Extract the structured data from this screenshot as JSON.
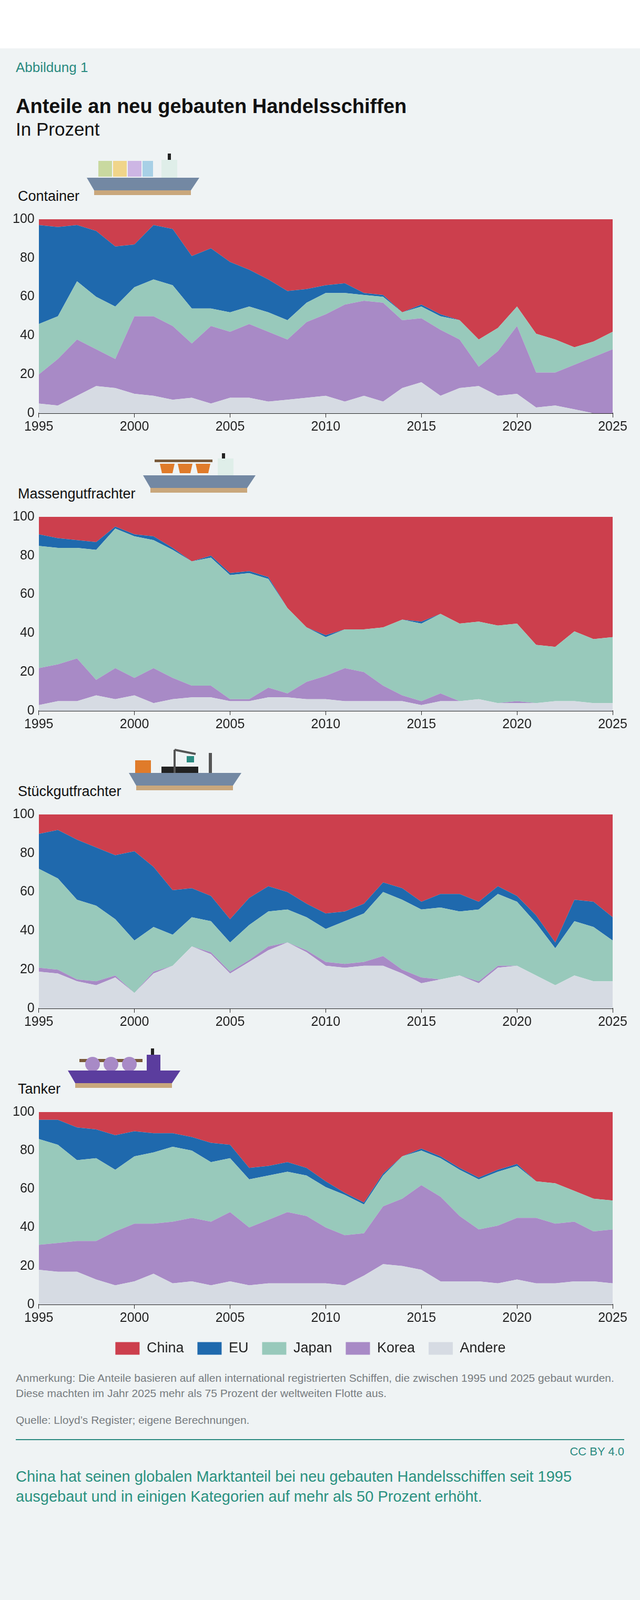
{
  "figure": {
    "label": "Abbildung 1",
    "title": "Anteile an neu gebauten Handelsschiffen",
    "subtitle": "In Prozent",
    "note": "Anmerkung: Die Anteile basieren auf allen international registrierten Schiffen, die zwischen 1995 und 2025 gebaut wurden. Diese machten im Jahr 2025 mehr als 75 Prozent der weltweiten Flotte aus.",
    "source": "Quelle: Lloyd’s Register; eigene Berechnungen.",
    "license": "CC BY 4.0",
    "caption": "China hat seinen globalen Marktanteil bei neu gebauten Handelsschiffen seit 1995 ausgebaut und in einigen Kategorien auf mehr als 50 Prozent erhöht."
  },
  "chart_data": [
    {
      "type": "area",
      "title": "Container",
      "stacked": true,
      "grid": false,
      "x": [
        1995,
        1996,
        1997,
        1998,
        1999,
        2000,
        2001,
        2002,
        2003,
        2004,
        2005,
        2006,
        2007,
        2008,
        2009,
        2010,
        2011,
        2012,
        2013,
        2014,
        2015,
        2016,
        2017,
        2018,
        2019,
        2020,
        2021,
        2022,
        2023,
        2024,
        2025
      ],
      "xlim": [
        1995,
        2025
      ],
      "xticks": [
        1995,
        2000,
        2005,
        2010,
        2015,
        2020,
        2025
      ],
      "ylim": [
        0,
        100
      ],
      "yticks": [
        0,
        20,
        40,
        60,
        80,
        100
      ],
      "series": [
        {
          "name": "China",
          "color": "#cc3f4d",
          "values": [
            3,
            4,
            3,
            6,
            14,
            13,
            3,
            5,
            19,
            15,
            22,
            26,
            31,
            37,
            36,
            34,
            33,
            38,
            39,
            48,
            44,
            49,
            52,
            62,
            56,
            45,
            59,
            62,
            66,
            63,
            58
          ]
        },
        {
          "name": "EU",
          "color": "#1f69ad",
          "values": [
            51,
            46,
            29,
            34,
            31,
            22,
            28,
            29,
            27,
            31,
            26,
            19,
            17,
            15,
            7,
            4,
            5,
            1,
            1,
            0,
            1,
            1,
            0,
            0,
            0,
            0,
            0,
            0,
            0,
            0,
            0
          ]
        },
        {
          "name": "Japan",
          "color": "#98c9bb",
          "values": [
            26,
            22,
            30,
            27,
            27,
            15,
            19,
            21,
            18,
            9,
            10,
            9,
            10,
            10,
            10,
            11,
            6,
            3,
            3,
            4,
            6,
            7,
            10,
            14,
            12,
            10,
            20,
            17,
            9,
            8,
            9
          ]
        },
        {
          "name": "Korea",
          "color": "#a88ac6",
          "values": [
            15,
            24,
            29,
            19,
            15,
            40,
            41,
            38,
            28,
            40,
            34,
            38,
            36,
            31,
            39,
            42,
            50,
            49,
            51,
            35,
            33,
            34,
            25,
            10,
            23,
            35,
            18,
            17,
            23,
            29,
            33
          ]
        },
        {
          "name": "Andere",
          "color": "#d6dbe3",
          "values": [
            5,
            4,
            9,
            14,
            13,
            10,
            9,
            7,
            8,
            5,
            8,
            8,
            6,
            7,
            8,
            9,
            6,
            9,
            6,
            13,
            16,
            9,
            13,
            14,
            9,
            10,
            3,
            4,
            2,
            0,
            0
          ]
        }
      ]
    },
    {
      "type": "area",
      "title": "Massengutfrachter",
      "stacked": true,
      "grid": false,
      "x": [
        1995,
        1996,
        1997,
        1998,
        1999,
        2000,
        2001,
        2002,
        2003,
        2004,
        2005,
        2006,
        2007,
        2008,
        2009,
        2010,
        2011,
        2012,
        2013,
        2014,
        2015,
        2016,
        2017,
        2018,
        2019,
        2020,
        2021,
        2022,
        2023,
        2024,
        2025
      ],
      "xlim": [
        1995,
        2025
      ],
      "xticks": [
        1995,
        2000,
        2005,
        2010,
        2015,
        2020,
        2025
      ],
      "ylim": [
        0,
        100
      ],
      "yticks": [
        0,
        20,
        40,
        60,
        80,
        100
      ],
      "series": [
        {
          "name": "China",
          "color": "#cc3f4d",
          "values": [
            9,
            11,
            12,
            13,
            5,
            9,
            10,
            16,
            23,
            20,
            29,
            28,
            31,
            47,
            57,
            61,
            58,
            58,
            57,
            53,
            54,
            50,
            55,
            54,
            56,
            55,
            66,
            67,
            59,
            63,
            62
          ]
        },
        {
          "name": "EU",
          "color": "#1f69ad",
          "values": [
            6,
            5,
            4,
            4,
            1,
            1,
            2,
            1,
            0,
            1,
            1,
            1,
            1,
            0,
            0,
            1,
            0,
            0,
            0,
            0,
            1,
            0,
            0,
            0,
            0,
            0,
            0,
            0,
            0,
            0,
            0
          ]
        },
        {
          "name": "Japan",
          "color": "#98c9bb",
          "values": [
            63,
            60,
            57,
            67,
            72,
            73,
            66,
            66,
            64,
            66,
            64,
            65,
            56,
            44,
            28,
            20,
            20,
            22,
            30,
            39,
            40,
            41,
            40,
            40,
            40,
            40,
            30,
            28,
            36,
            33,
            34
          ]
        },
        {
          "name": "Korea",
          "color": "#a88ac6",
          "values": [
            19,
            19,
            22,
            8,
            16,
            9,
            18,
            11,
            6,
            6,
            1,
            1,
            5,
            2,
            9,
            12,
            17,
            15,
            8,
            3,
            2,
            4,
            0,
            0,
            0,
            1,
            0,
            0,
            0,
            0,
            0
          ]
        },
        {
          "name": "Andere",
          "color": "#d6dbe3",
          "values": [
            3,
            5,
            5,
            8,
            6,
            8,
            4,
            6,
            7,
            7,
            5,
            5,
            7,
            7,
            6,
            6,
            5,
            5,
            5,
            5,
            3,
            5,
            5,
            6,
            4,
            4,
            4,
            5,
            5,
            4,
            4
          ]
        }
      ]
    },
    {
      "type": "area",
      "title": "Stückgutfrachter",
      "stacked": true,
      "grid": false,
      "x": [
        1995,
        1996,
        1997,
        1998,
        1999,
        2000,
        2001,
        2002,
        2003,
        2004,
        2005,
        2006,
        2007,
        2008,
        2009,
        2010,
        2011,
        2012,
        2013,
        2014,
        2015,
        2016,
        2017,
        2018,
        2019,
        2020,
        2021,
        2022,
        2023,
        2024,
        2025
      ],
      "xlim": [
        1995,
        2025
      ],
      "xticks": [
        1995,
        2000,
        2005,
        2010,
        2015,
        2020,
        2025
      ],
      "ylim": [
        0,
        100
      ],
      "yticks": [
        0,
        20,
        40,
        60,
        80,
        100
      ],
      "series": [
        {
          "name": "China",
          "color": "#cc3f4d",
          "values": [
            10,
            8,
            13,
            17,
            21,
            19,
            27,
            39,
            38,
            42,
            54,
            43,
            37,
            40,
            46,
            51,
            50,
            46,
            35,
            38,
            45,
            41,
            41,
            45,
            37,
            42,
            52,
            66,
            44,
            45,
            53
          ]
        },
        {
          "name": "EU",
          "color": "#1f69ad",
          "values": [
            18,
            25,
            31,
            30,
            33,
            46,
            31,
            23,
            15,
            13,
            12,
            14,
            13,
            9,
            7,
            8,
            5,
            5,
            5,
            6,
            4,
            7,
            9,
            4,
            4,
            3,
            4,
            3,
            11,
            13,
            12
          ]
        },
        {
          "name": "Japan",
          "color": "#98c9bb",
          "values": [
            51,
            47,
            41,
            39,
            29,
            27,
            23,
            16,
            15,
            16,
            15,
            18,
            18,
            17,
            17,
            17,
            22,
            25,
            33,
            36,
            35,
            37,
            33,
            37,
            37,
            33,
            27,
            19,
            28,
            28,
            21
          ]
        },
        {
          "name": "Korea",
          "color": "#a88ac6",
          "values": [
            2,
            2,
            1,
            2,
            1,
            0,
            1,
            0,
            0,
            1,
            1,
            1,
            2,
            0,
            1,
            2,
            2,
            2,
            5,
            2,
            3,
            0,
            0,
            1,
            1,
            0,
            0,
            0,
            0,
            0,
            0
          ]
        },
        {
          "name": "Andere",
          "color": "#d6dbe3",
          "values": [
            19,
            18,
            14,
            12,
            16,
            8,
            18,
            22,
            32,
            28,
            18,
            24,
            30,
            34,
            29,
            22,
            21,
            22,
            22,
            18,
            13,
            15,
            17,
            13,
            21,
            22,
            17,
            12,
            17,
            14,
            14
          ]
        }
      ]
    },
    {
      "type": "area",
      "title": "Tanker",
      "stacked": true,
      "grid": false,
      "legend": "bottom",
      "x": [
        1995,
        1996,
        1997,
        1998,
        1999,
        2000,
        2001,
        2002,
        2003,
        2004,
        2005,
        2006,
        2007,
        2008,
        2009,
        2010,
        2011,
        2012,
        2013,
        2014,
        2015,
        2016,
        2017,
        2018,
        2019,
        2020,
        2021,
        2022,
        2023,
        2024,
        2025
      ],
      "xlim": [
        1995,
        2025
      ],
      "xticks": [
        1995,
        2000,
        2005,
        2010,
        2015,
        2020,
        2025
      ],
      "ylim": [
        0,
        100
      ],
      "yticks": [
        0,
        20,
        40,
        60,
        80,
        100
      ],
      "series": [
        {
          "name": "China",
          "color": "#cc3f4d",
          "values": [
            4,
            4,
            8,
            9,
            12,
            10,
            11,
            11,
            13,
            16,
            17,
            29,
            28,
            26,
            29,
            36,
            42,
            47,
            32,
            23,
            19,
            23,
            29,
            34,
            30,
            27,
            36,
            37,
            41,
            45,
            46
          ]
        },
        {
          "name": "EU",
          "color": "#1f69ad",
          "values": [
            10,
            13,
            17,
            15,
            18,
            13,
            10,
            7,
            7,
            10,
            7,
            6,
            5,
            5,
            4,
            3,
            1,
            1,
            1,
            0,
            1,
            1,
            1,
            1,
            1,
            1,
            0,
            0,
            0,
            0,
            0
          ]
        },
        {
          "name": "Japan",
          "color": "#98c9bb",
          "values": [
            55,
            51,
            42,
            43,
            32,
            35,
            37,
            39,
            35,
            31,
            28,
            25,
            23,
            21,
            21,
            21,
            21,
            15,
            16,
            22,
            18,
            20,
            24,
            26,
            28,
            27,
            19,
            21,
            16,
            17,
            15
          ]
        },
        {
          "name": "Korea",
          "color": "#a88ac6",
          "values": [
            13,
            15,
            16,
            20,
            28,
            30,
            26,
            32,
            33,
            33,
            36,
            30,
            33,
            37,
            35,
            29,
            26,
            22,
            30,
            35,
            44,
            44,
            34,
            27,
            30,
            32,
            34,
            31,
            31,
            26,
            28
          ]
        },
        {
          "name": "Andere",
          "color": "#d6dbe3",
          "values": [
            18,
            17,
            17,
            13,
            10,
            12,
            16,
            11,
            12,
            10,
            12,
            10,
            11,
            11,
            11,
            11,
            10,
            15,
            21,
            20,
            18,
            12,
            12,
            12,
            11,
            13,
            11,
            11,
            12,
            12,
            11
          ]
        }
      ]
    }
  ]
}
